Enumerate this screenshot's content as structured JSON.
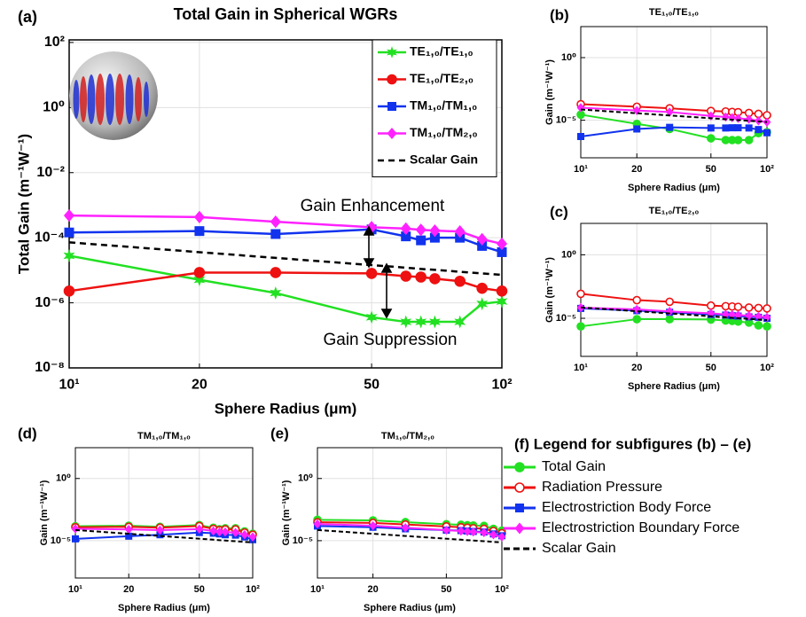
{
  "chart_data": [
    {
      "type": "line",
      "panel_label": "(a)",
      "title": "Total Gain in Spherical WGRs",
      "xlabel": "Sphere Radius (μm)",
      "ylabel": "Total Gain (m⁻¹W⁻¹)",
      "log_x": true,
      "log_y": true,
      "grid": true,
      "legend": "upper right",
      "x": [
        10,
        20,
        30,
        50,
        60,
        65,
        70,
        80,
        90,
        100
      ],
      "xlim": [
        10,
        100
      ],
      "ylim": [
        1e-08,
        120
      ],
      "xticks": [
        {
          "value": 10,
          "label": "10¹"
        },
        20,
        50,
        {
          "value": 100,
          "label": "10²"
        }
      ],
      "yticks": [
        {
          "value": 1e-08,
          "label": "10⁻⁸"
        },
        {
          "value": 1e-06,
          "label": "10⁻⁶"
        },
        {
          "value": 0.0001,
          "label": "10⁻⁴"
        },
        {
          "value": 0.01,
          "label": "10⁻²"
        },
        {
          "value": 1,
          "label": "10⁰"
        },
        {
          "value": 100,
          "label": "10²"
        }
      ],
      "annotations": [
        "Gain Enhancement",
        "Gain Suppression"
      ],
      "series": [
        {
          "name": "TE₁,₀/TE₁,₀",
          "color": "#22e022",
          "marker": "star",
          "values": [
            2.8e-05,
            5.1e-06,
            2e-06,
            3.6e-07,
            2.6e-07,
            2.6e-07,
            2.6e-07,
            2.6e-07,
            9.3e-07,
            1.1e-06
          ]
        },
        {
          "name": "TE₁,₀/TE₂,₀",
          "color": "#ee1111",
          "marker": "circle",
          "values": [
            2.3e-06,
            8.5e-06,
            8.5e-06,
            8e-06,
            6.6e-06,
            6.2e-06,
            5.5e-06,
            4.6e-06,
            2.8e-06,
            2.3e-06
          ]
        },
        {
          "name": "TM₁,₀/TM₁,₀",
          "color": "#1133ee",
          "marker": "square",
          "values": [
            0.000145,
            0.00016,
            0.00013,
            0.00018,
            0.00011,
            8.3e-05,
            0.0001,
            0.0001,
            5.6e-05,
            3.6e-05
          ]
        },
        {
          "name": "TM₁,₀/TM₂,₀",
          "color": "#ff22ff",
          "marker": "diamond",
          "values": [
            0.00048,
            0.00043,
            0.00031,
            0.00021,
            0.00019,
            0.000175,
            0.000165,
            0.000155,
            9e-05,
            6.5e-05
          ]
        },
        {
          "name": "Scalar Gain",
          "color": "#000000",
          "marker": "none",
          "dash": true,
          "values": [
            7.2e-05,
            3.6e-05,
            2.4e-05,
            1.44e-05,
            1.2e-05,
            1.1e-05,
            1.03e-05,
            9e-06,
            8e-06,
            7.2e-06
          ]
        }
      ]
    },
    {
      "type": "line",
      "panel_label": "(b)",
      "title": "TE₁,₀/TE₁,₀",
      "xlabel": "Sphere Radius (μm)",
      "ylabel": "Gain (m⁻¹W⁻¹)",
      "log_x": true,
      "log_y": true,
      "grid": true,
      "legend": "none",
      "x": [
        10,
        20,
        30,
        50,
        60,
        65,
        70,
        80,
        90,
        100
      ],
      "xlim": [
        10,
        100
      ],
      "ylim": [
        1e-08,
        300
      ],
      "xticks": [
        {
          "value": 10,
          "label": "10¹"
        },
        20,
        50,
        {
          "value": 100,
          "label": "10²"
        }
      ],
      "yticks": [
        {
          "value": 1e-05,
          "label": "10⁻⁵"
        },
        {
          "value": 1,
          "label": "10⁰"
        }
      ],
      "series": [
        {
          "name": "Total Gain",
          "color": "#22e022",
          "marker": "circle",
          "values": [
            2.8e-05,
            5.1e-06,
            2e-06,
            3.6e-07,
            2.6e-07,
            2.6e-07,
            2.6e-07,
            2.6e-07,
            9.3e-07,
            1.1e-06
          ]
        },
        {
          "name": "Radiation Pressure",
          "color": "#ee1111",
          "marker": "circle-open",
          "values": [
            0.00019,
            0.00012,
            9e-05,
            5.5e-05,
            5e-05,
            4.6e-05,
            4.4e-05,
            3.8e-05,
            3.2e-05,
            2.5e-05
          ]
        },
        {
          "name": "Electrostriction Body Force",
          "color": "#1133ee",
          "marker": "square",
          "values": [
            5e-07,
            2e-06,
            2.7e-06,
            2.4e-06,
            2.4e-06,
            2.5e-06,
            2.5e-06,
            2.4e-06,
            1.8e-06,
            1e-06
          ]
        },
        {
          "name": "Electrostriction Boundary Force",
          "color": "#ff22ff",
          "marker": "diamond",
          "values": [
            0.0001,
            6e-05,
            4.5e-05,
            2.2e-05,
            1.8e-05,
            1.6e-05,
            1.4e-05,
            1.2e-05,
            9e-06,
            7e-06
          ]
        },
        {
          "name": "Scalar Gain",
          "color": "#000000",
          "marker": "none",
          "dash": true,
          "values": [
            7.2e-05,
            3.6e-05,
            2.4e-05,
            1.44e-05,
            1.2e-05,
            1.1e-05,
            1.03e-05,
            9e-06,
            8e-06,
            7.2e-06
          ]
        }
      ]
    },
    {
      "type": "line",
      "panel_label": "(c)",
      "title": "TE₁,₀/TE₂,₀",
      "xlabel": "Sphere Radius (μm)",
      "ylabel": "Gain (m⁻¹W⁻¹)",
      "log_x": true,
      "log_y": true,
      "grid": true,
      "legend": "none",
      "x": [
        10,
        20,
        30,
        50,
        60,
        65,
        70,
        80,
        90,
        100
      ],
      "xlim": [
        10,
        100
      ],
      "ylim": [
        1e-08,
        300
      ],
      "xticks": [
        {
          "value": 10,
          "label": "10¹"
        },
        20,
        50,
        {
          "value": 100,
          "label": "10²"
        }
      ],
      "yticks": [
        {
          "value": 1e-05,
          "label": "10⁻⁵"
        },
        {
          "value": 1,
          "label": "10⁰"
        }
      ],
      "series": [
        {
          "name": "Total Gain",
          "color": "#22e022",
          "marker": "circle",
          "values": [
            2.3e-06,
            8.5e-06,
            8.5e-06,
            8e-06,
            6.6e-06,
            6.2e-06,
            5.5e-06,
            4.6e-06,
            2.8e-06,
            2.3e-06
          ]
        },
        {
          "name": "Radiation Pressure",
          "color": "#ee1111",
          "marker": "circle-open",
          "values": [
            0.00085,
            0.00027,
            0.0002,
            0.0001,
            9e-05,
            8.5e-05,
            8e-05,
            7e-05,
            6.5e-05,
            6e-05
          ]
        },
        {
          "name": "Electrostriction Body Force",
          "color": "#1133ee",
          "marker": "square",
          "values": [
            6e-05,
            4e-05,
            3e-05,
            2e-05,
            1.8e-05,
            1.6e-05,
            1.5e-05,
            1.3e-05,
            1.2e-05,
            1e-05
          ]
        },
        {
          "name": "Electrostriction Boundary Force",
          "color": "#ff22ff",
          "marker": "diamond",
          "values": [
            7e-05,
            5e-05,
            3.5e-05,
            2.5e-05,
            2e-05,
            1.9e-05,
            1.8e-05,
            1.6e-05,
            1.4e-05,
            1.2e-05
          ]
        },
        {
          "name": "Scalar Gain",
          "color": "#000000",
          "marker": "none",
          "dash": true,
          "values": [
            7.2e-05,
            3.6e-05,
            2.4e-05,
            1.44e-05,
            1.2e-05,
            1.1e-05,
            1.03e-05,
            9e-06,
            8e-06,
            7.2e-06
          ]
        }
      ]
    },
    {
      "type": "line",
      "panel_label": "(d)",
      "title": "TM₁,₀/TM₁,₀",
      "xlabel": "Sphere Radius (μm)",
      "ylabel": "Gain (m⁻¹W⁻¹)",
      "log_x": true,
      "log_y": true,
      "grid": true,
      "legend": "none",
      "x": [
        10,
        20,
        30,
        50,
        60,
        65,
        70,
        80,
        90,
        100
      ],
      "xlim": [
        10,
        100
      ],
      "ylim": [
        1e-08,
        300
      ],
      "xticks": [
        {
          "value": 10,
          "label": "10¹"
        },
        20,
        50,
        {
          "value": 100,
          "label": "10²"
        }
      ],
      "yticks": [
        {
          "value": 1e-05,
          "label": "10⁻⁵"
        },
        {
          "value": 1,
          "label": "10⁰"
        }
      ],
      "series": [
        {
          "name": "Total Gain",
          "color": "#22e022",
          "marker": "circle",
          "values": [
            0.000145,
            0.00016,
            0.00013,
            0.00018,
            0.00011,
            8.3e-05,
            0.0001,
            0.0001,
            5.6e-05,
            3.6e-05
          ]
        },
        {
          "name": "Radiation Pressure",
          "color": "#ee1111",
          "marker": "circle-open",
          "values": [
            0.00012,
            0.00013,
            0.00011,
            0.00015,
            9e-05,
            7e-05,
            8e-05,
            8e-05,
            4.5e-05,
            3e-05
          ]
        },
        {
          "name": "Electrostriction Body Force",
          "color": "#1133ee",
          "marker": "square",
          "values": [
            1.4e-05,
            2.3e-05,
            3e-05,
            4.5e-05,
            4e-05,
            3.5e-05,
            3e-05,
            2.8e-05,
            2e-05,
            1.2e-05
          ]
        },
        {
          "name": "Electrostriction Boundary Force",
          "color": "#ff22ff",
          "marker": "diamond",
          "values": [
            9e-05,
            8e-05,
            7e-05,
            8.5e-05,
            6e-05,
            5e-05,
            5e-05,
            4.5e-05,
            3e-05,
            2e-05
          ]
        },
        {
          "name": "Scalar Gain",
          "color": "#000000",
          "marker": "none",
          "dash": true,
          "values": [
            7.2e-05,
            3.6e-05,
            2.4e-05,
            1.44e-05,
            1.2e-05,
            1.1e-05,
            1.03e-05,
            9e-06,
            8e-06,
            7.2e-06
          ]
        }
      ]
    },
    {
      "type": "line",
      "panel_label": "(e)",
      "title": "TM₁,₀/TM₂,₀",
      "xlabel": "Sphere Radius (μm)",
      "ylabel": "Gain (m⁻¹W⁻¹)",
      "log_x": true,
      "log_y": true,
      "grid": true,
      "legend": "none",
      "x": [
        10,
        20,
        30,
        50,
        60,
        65,
        70,
        80,
        90,
        100
      ],
      "xlim": [
        10,
        100
      ],
      "ylim": [
        1e-08,
        300
      ],
      "xticks": [
        {
          "value": 10,
          "label": "10¹"
        },
        20,
        50,
        {
          "value": 100,
          "label": "10²"
        }
      ],
      "yticks": [
        {
          "value": 1e-05,
          "label": "10⁻⁵"
        },
        {
          "value": 1,
          "label": "10⁰"
        }
      ],
      "series": [
        {
          "name": "Total Gain",
          "color": "#22e022",
          "marker": "circle",
          "values": [
            0.00048,
            0.00043,
            0.00031,
            0.00021,
            0.00019,
            0.000175,
            0.000165,
            0.000155,
            9e-05,
            6.5e-05
          ]
        },
        {
          "name": "Radiation Pressure",
          "color": "#ee1111",
          "marker": "circle-open",
          "values": [
            0.0003,
            0.00027,
            0.0002,
            0.00014,
            0.00012,
            0.00011,
            0.0001,
            9e-05,
            6e-05,
            4e-05
          ]
        },
        {
          "name": "Electrostriction Body Force",
          "color": "#1133ee",
          "marker": "square",
          "values": [
            0.00015,
            0.00012,
            9e-05,
            7e-05,
            6.5e-05,
            6e-05,
            5.5e-05,
            5e-05,
            3.5e-05,
            2.5e-05
          ]
        },
        {
          "name": "Electrostriction Boundary Force",
          "color": "#ff22ff",
          "marker": "diamond",
          "values": [
            0.00022,
            0.00016,
            0.00011,
            7e-05,
            6e-05,
            5.5e-05,
            5e-05,
            4.5e-05,
            3e-05,
            2e-05
          ]
        },
        {
          "name": "Scalar Gain",
          "color": "#000000",
          "marker": "none",
          "dash": true,
          "values": [
            7.2e-05,
            3.6e-05,
            2.4e-05,
            1.44e-05,
            1.2e-05,
            1.1e-05,
            1.03e-05,
            9e-06,
            8e-06,
            7.2e-06
          ]
        }
      ]
    }
  ],
  "shared_legend": {
    "title": "(f) Legend for subfigures (b) – (e)"
  }
}
